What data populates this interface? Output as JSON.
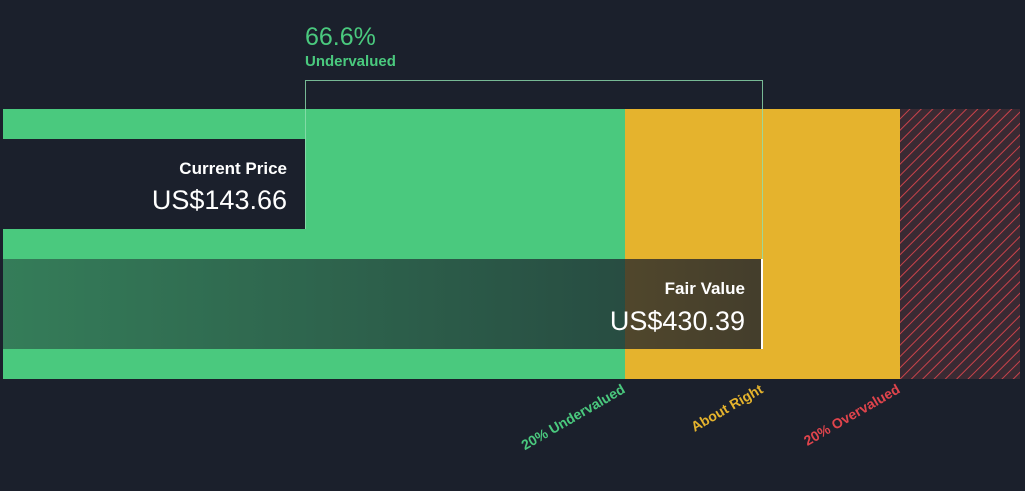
{
  "header": {
    "percent": "66.6%",
    "status": "Undervalued"
  },
  "current_price": {
    "label": "Current Price",
    "value": "US$143.66"
  },
  "fair_value": {
    "label": "Fair Value",
    "value": "US$430.39"
  },
  "zones": [
    "20% Undervalued",
    "About Right",
    "20% Overvalued"
  ]
}
